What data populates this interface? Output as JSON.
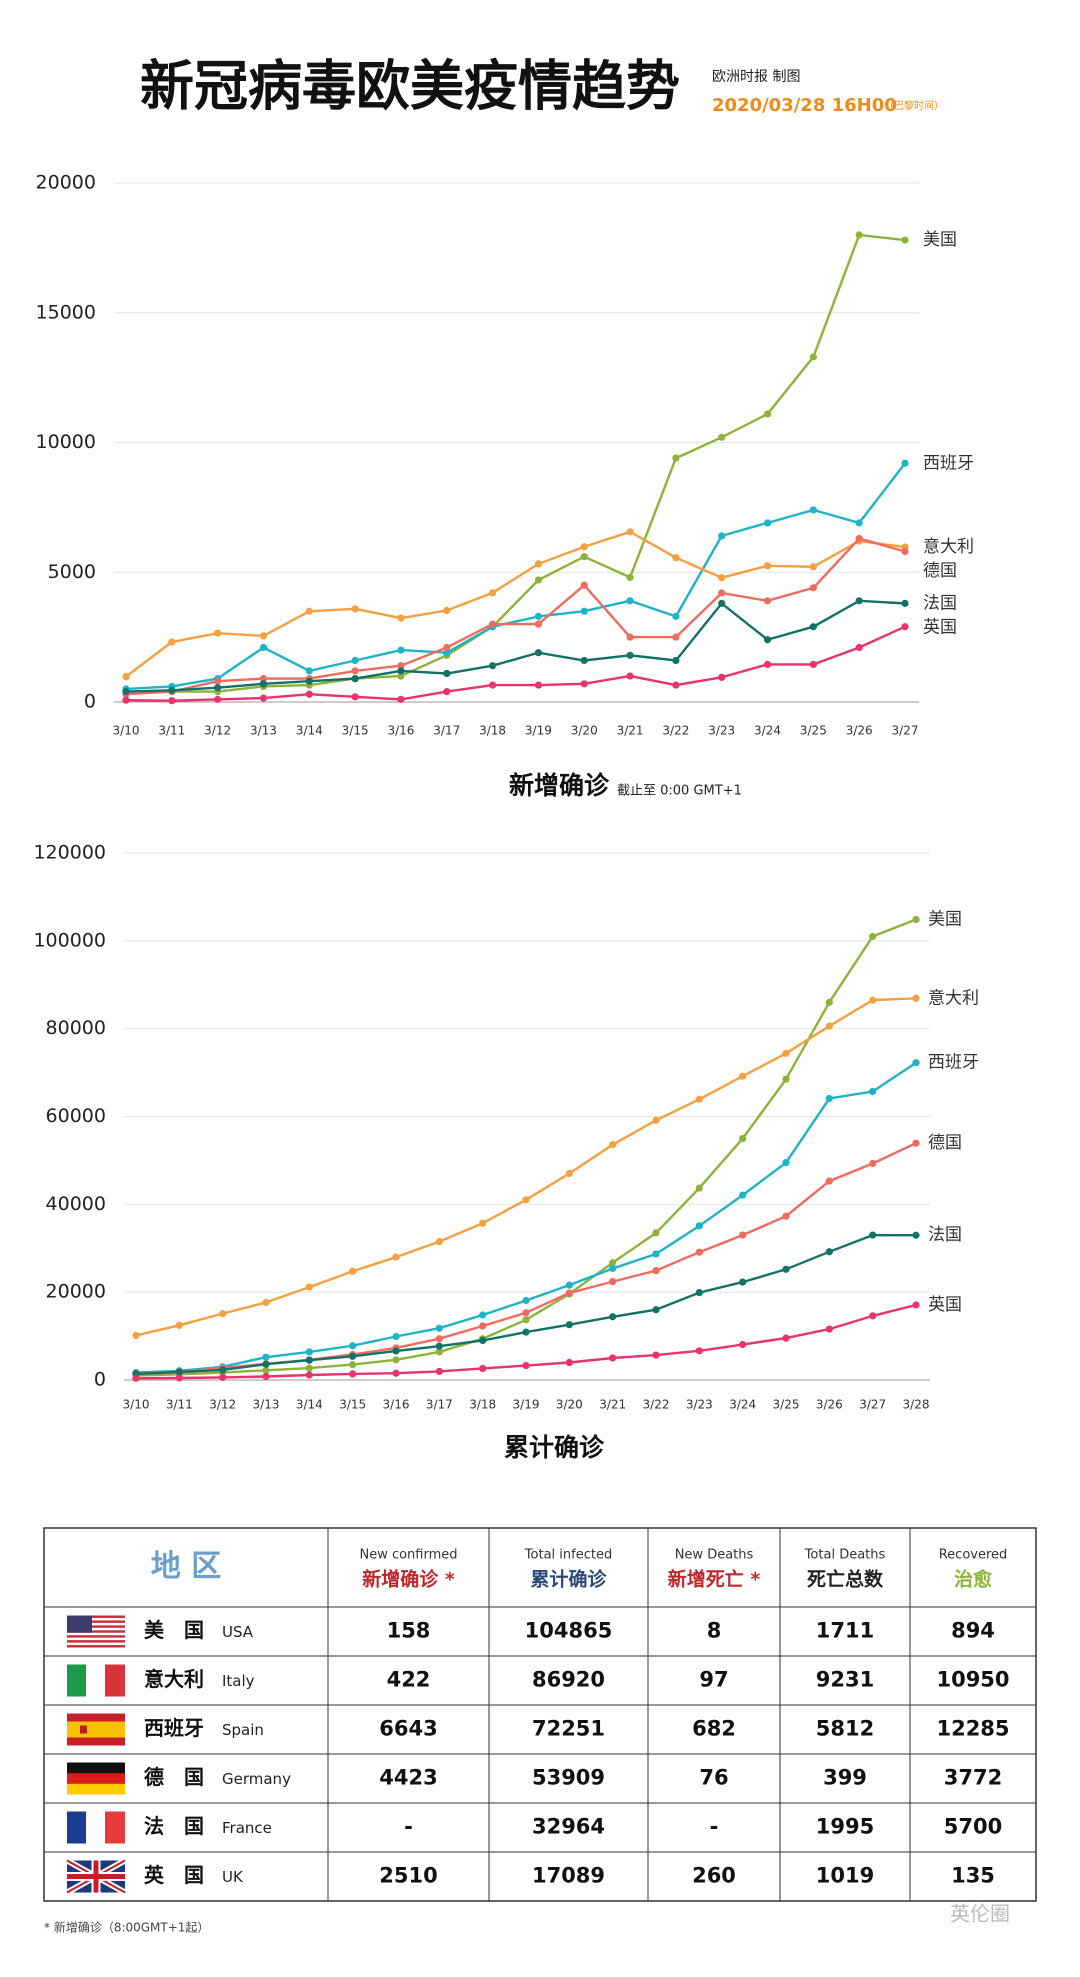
{
  "header": {
    "title": "新冠病毒欧美疫情趋势",
    "source": "欧洲时报 制图",
    "date": "2020/03/28 16H00",
    "timezone": "（巴黎时间）"
  },
  "chart_data": [
    {
      "type": "line",
      "title": "新增确诊",
      "note": "截止至 0:00 GMT+1",
      "categories": [
        "3/10",
        "3/11",
        "3/12",
        "3/13",
        "3/14",
        "3/15",
        "3/16",
        "3/17",
        "3/18",
        "3/19",
        "3/20",
        "3/21",
        "3/22",
        "3/23",
        "3/24",
        "3/25",
        "3/26",
        "3/27"
      ],
      "ylim": [
        0,
        20000
      ],
      "yticks": [
        0,
        5000,
        10000,
        15000,
        20000
      ],
      "grid": true,
      "series": [
        {
          "name": "美国",
          "color": "#8db33a",
          "values": [
            350,
            400,
            400,
            600,
            650,
            900,
            1000,
            1800,
            2900,
            4700,
            5600,
            4800,
            9400,
            10200,
            11100,
            13300,
            18000,
            17800
          ]
        },
        {
          "name": "西班牙",
          "color": "#1fb3c8",
          "values": [
            500,
            600,
            900,
            2100,
            1200,
            1600,
            2000,
            1900,
            2900,
            3300,
            3500,
            3900,
            3300,
            6400,
            6900,
            7400,
            6900,
            9200
          ]
        },
        {
          "name": "意大利",
          "color": "#f4a040",
          "values": [
            977,
            2313,
            2651,
            2547,
            3497,
            3590,
            3233,
            3526,
            4207,
            5322,
            5986,
            6557,
            5560,
            4789,
            5249,
            5210,
            6203,
            5974
          ]
        },
        {
          "name": "德国",
          "color": "#ef6b5f",
          "values": [
            300,
            400,
            800,
            900,
            900,
            1200,
            1400,
            2100,
            3000,
            3000,
            4500,
            2500,
            2500,
            4200,
            3900,
            4400,
            6300,
            5800
          ]
        },
        {
          "name": "法国",
          "color": "#137268",
          "values": [
            400,
            450,
            550,
            700,
            800,
            900,
            1200,
            1100,
            1400,
            1900,
            1600,
            1800,
            1600,
            3800,
            2400,
            2900,
            3900,
            3800
          ]
        },
        {
          "name": "英国",
          "color": "#e8336d",
          "values": [
            70,
            50,
            100,
            150,
            300,
            200,
            100,
            400,
            650,
            650,
            700,
            1000,
            650,
            950,
            1450,
            1450,
            2100,
            2900
          ]
        }
      ]
    },
    {
      "type": "line",
      "title": "累计确诊",
      "categories": [
        "3/10",
        "3/11",
        "3/12",
        "3/13",
        "3/14",
        "3/15",
        "3/16",
        "3/17",
        "3/18",
        "3/19",
        "3/20",
        "3/21",
        "3/22",
        "3/23",
        "3/24",
        "3/25",
        "3/26",
        "3/27",
        "3/28"
      ],
      "ylim": [
        0,
        120000
      ],
      "yticks": [
        0,
        20000,
        40000,
        60000,
        80000,
        100000,
        120000
      ],
      "grid": true,
      "series": [
        {
          "name": "美国",
          "color": "#8db33a",
          "values": [
            1000,
            1300,
            1700,
            2200,
            2700,
            3500,
            4600,
            6400,
            9400,
            13700,
            19600,
            26700,
            33500,
            43700,
            55000,
            68500,
            86000,
            101000,
            104865
          ]
        },
        {
          "name": "意大利",
          "color": "#f4a040",
          "values": [
            10149,
            12462,
            15113,
            17660,
            21157,
            24747,
            27980,
            31506,
            35713,
            41035,
            47021,
            53578,
            59138,
            63927,
            69176,
            74386,
            80589,
            86498,
            86920
          ]
        },
        {
          "name": "西班牙",
          "color": "#1fb3c8",
          "values": [
            1700,
            2100,
            3000,
            5200,
            6400,
            7800,
            9900,
            11800,
            14800,
            18100,
            21600,
            25400,
            28700,
            35100,
            42100,
            49500,
            64100,
            65700,
            72251
          ]
        },
        {
          "name": "德国",
          "color": "#ef6b5f",
          "values": [
            1500,
            1900,
            2700,
            3700,
            4600,
            5800,
            7300,
            9400,
            12300,
            15300,
            19800,
            22400,
            24900,
            29100,
            33000,
            37300,
            45300,
            49300,
            53909
          ]
        },
        {
          "name": "法国",
          "color": "#137268",
          "values": [
            1400,
            1800,
            2300,
            3600,
            4500,
            5400,
            6600,
            7700,
            9000,
            10900,
            12600,
            14400,
            16000,
            19900,
            22300,
            25200,
            29200,
            33000,
            32964
          ]
        },
        {
          "name": "英国",
          "color": "#e8336d",
          "values": [
            380,
            460,
            590,
            800,
            1140,
            1390,
            1540,
            1950,
            2630,
            3270,
            3980,
            5020,
            5680,
            6650,
            8080,
            9530,
            11600,
            14600,
            17089
          ]
        }
      ]
    }
  ],
  "table": {
    "columns": [
      {
        "zh": "地 区",
        "color": "#6d9fcc"
      },
      {
        "en": "New confirmed",
        "zh": "新增确诊 *",
        "color": "#c0272d"
      },
      {
        "en": "Total infected",
        "zh": "累计确诊",
        "color": "#2e4a7a"
      },
      {
        "en": "New Deaths",
        "zh": "新增死亡 *",
        "color": "#c0272d"
      },
      {
        "en": "Total Deaths",
        "zh": "死亡总数",
        "color": "#222222"
      },
      {
        "en": "Recovered",
        "zh": "治愈",
        "color": "#8db33a"
      }
    ],
    "rows": [
      {
        "zh": "美　国",
        "en": "USA",
        "cells": [
          158,
          104865,
          8,
          1711,
          894
        ]
      },
      {
        "zh": "意大利",
        "en": "Italy",
        "cells": [
          422,
          86920,
          97,
          9231,
          10950
        ]
      },
      {
        "zh": "西班牙",
        "en": "Spain",
        "cells": [
          6643,
          72251,
          682,
          5812,
          12285
        ]
      },
      {
        "zh": "德　国",
        "en": "Germany",
        "cells": [
          4423,
          53909,
          76,
          399,
          3772
        ]
      },
      {
        "zh": "法　国",
        "en": "France",
        "cells": [
          "-",
          32964,
          "-",
          1995,
          5700
        ]
      },
      {
        "zh": "英　国",
        "en": "UK",
        "cells": [
          2510,
          17089,
          260,
          1019,
          135
        ]
      }
    ]
  },
  "footnote": "* 新增确诊（8:00GMT+1起）",
  "watermark": "英伦圈"
}
